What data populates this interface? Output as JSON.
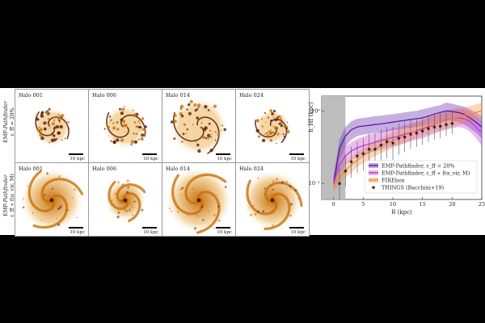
{
  "figure": {
    "rows": [
      {
        "label_line1": "EMP-",
        "label_italic": "Pathfinder",
        "label_line2": "ε_ff = 20%",
        "halos": [
          "Halo 001",
          "Halo 006",
          "Halo 014",
          "Halo 024"
        ]
      },
      {
        "label_line1": "EMP-",
        "label_italic": "Pathfinder",
        "label_line2": "ε_ff ∝ f(α_vir, M)",
        "halos": [
          "Halo 001",
          "Halo 006",
          "Halo 014",
          "Halo 024"
        ]
      }
    ],
    "scale_label": "10 kpc",
    "colors": {
      "gas_dark": "#5a1a00",
      "gas_mid": "#c8700a",
      "gas_light": "#f3d3a0"
    }
  },
  "chart_data": {
    "type": "line",
    "xlabel": "R (kpc)",
    "ylabel": "h_HI (kpc)",
    "xlim": [
      -2,
      25
    ],
    "ylim": [
      0.06,
      1.6
    ],
    "yscale": "log",
    "x_ticks": [
      0,
      5,
      10,
      15,
      20,
      25
    ],
    "y_ticks": [
      {
        "v": 0.1,
        "label": "10⁻¹"
      },
      {
        "v": 1.0,
        "label": "10⁰"
      }
    ],
    "shaded_region": [
      -2,
      2
    ],
    "legend_placement": "lower-right",
    "series": [
      {
        "name": "EMP-Pathfinder, ε_ff = 20%",
        "color": "#5b1aa6",
        "x": [
          0,
          1,
          2,
          3,
          4,
          5,
          6,
          7,
          8,
          9,
          10,
          11,
          12,
          13,
          14,
          15,
          16,
          17,
          18,
          19,
          20,
          21,
          22,
          23,
          24,
          25
        ],
        "y": [
          0.1,
          0.3,
          0.45,
          0.55,
          0.6,
          0.62,
          0.63,
          0.65,
          0.66,
          0.68,
          0.7,
          0.72,
          0.74,
          0.76,
          0.78,
          0.8,
          0.85,
          0.9,
          0.95,
          1.0,
          0.98,
          0.95,
          0.9,
          0.8,
          0.7,
          0.6
        ],
        "lo": [
          0.08,
          0.22,
          0.32,
          0.4,
          0.45,
          0.47,
          0.48,
          0.5,
          0.5,
          0.52,
          0.54,
          0.55,
          0.57,
          0.58,
          0.6,
          0.62,
          0.65,
          0.68,
          0.7,
          0.75,
          0.72,
          0.7,
          0.65,
          0.58,
          0.5,
          0.42
        ],
        "hi": [
          0.13,
          0.4,
          0.6,
          0.72,
          0.78,
          0.8,
          0.82,
          0.85,
          0.86,
          0.88,
          0.9,
          0.93,
          0.95,
          0.98,
          1.0,
          1.05,
          1.1,
          1.15,
          1.2,
          1.3,
          1.25,
          1.2,
          1.15,
          1.05,
          0.95,
          0.85
        ]
      },
      {
        "name": "EMP-Pathfinder, ε_ff ∝ f(α_vir, M)",
        "color": "#c23bd1",
        "x": [
          0,
          1,
          2,
          3,
          4,
          5,
          6,
          7,
          8,
          9,
          10,
          11,
          12,
          13,
          14,
          15,
          16,
          17,
          18,
          19,
          20,
          21,
          22,
          23,
          24,
          25
        ],
        "y": [
          0.1,
          0.18,
          0.24,
          0.28,
          0.31,
          0.33,
          0.35,
          0.37,
          0.39,
          0.41,
          0.43,
          0.45,
          0.48,
          0.5,
          0.53,
          0.56,
          0.6,
          0.65,
          0.7,
          0.75,
          0.78,
          0.8,
          0.78,
          0.72,
          0.6,
          0.5
        ],
        "lo": [
          0.08,
          0.14,
          0.18,
          0.21,
          0.23,
          0.25,
          0.26,
          0.28,
          0.29,
          0.31,
          0.32,
          0.34,
          0.36,
          0.38,
          0.4,
          0.42,
          0.45,
          0.48,
          0.52,
          0.55,
          0.58,
          0.6,
          0.58,
          0.52,
          0.42,
          0.33
        ],
        "hi": [
          0.13,
          0.24,
          0.32,
          0.37,
          0.41,
          0.44,
          0.47,
          0.49,
          0.52,
          0.55,
          0.58,
          0.6,
          0.63,
          0.66,
          0.7,
          0.74,
          0.8,
          0.86,
          0.93,
          1.0,
          1.05,
          1.08,
          1.05,
          0.98,
          0.85,
          0.72
        ]
      },
      {
        "name": "FIREbox",
        "color": "#f08a3c",
        "x": [
          0,
          1,
          2,
          3,
          4,
          5,
          6,
          7,
          8,
          9,
          10,
          11,
          12,
          13,
          14,
          15,
          16,
          17,
          18,
          19,
          20,
          21,
          22,
          23,
          24,
          25
        ],
        "y": [
          0.09,
          0.12,
          0.15,
          0.18,
          0.21,
          0.24,
          0.27,
          0.3,
          0.33,
          0.36,
          0.39,
          0.42,
          0.46,
          0.5,
          0.54,
          0.58,
          0.62,
          0.66,
          0.7,
          0.74,
          0.78,
          0.82,
          0.86,
          0.9,
          0.95,
          1.0
        ],
        "lo": [
          0.075,
          0.1,
          0.12,
          0.14,
          0.17,
          0.19,
          0.21,
          0.24,
          0.26,
          0.28,
          0.31,
          0.33,
          0.36,
          0.39,
          0.42,
          0.45,
          0.48,
          0.51,
          0.54,
          0.57,
          0.6,
          0.63,
          0.66,
          0.69,
          0.72,
          0.76
        ],
        "hi": [
          0.11,
          0.15,
          0.19,
          0.23,
          0.27,
          0.3,
          0.34,
          0.38,
          0.42,
          0.46,
          0.5,
          0.54,
          0.59,
          0.64,
          0.7,
          0.75,
          0.8,
          0.86,
          0.91,
          0.96,
          1.02,
          1.07,
          1.12,
          1.17,
          1.23,
          1.3
        ]
      },
      {
        "name": "THINGS (Bacchini+19)",
        "color": "#111111",
        "marker": "star",
        "x": [
          1,
          2,
          3,
          4,
          5,
          6,
          7,
          8,
          9,
          10,
          11,
          12,
          13,
          14,
          15,
          16,
          17,
          18,
          19,
          20
        ],
        "y": [
          0.1,
          0.15,
          0.2,
          0.24,
          0.26,
          0.3,
          0.3,
          0.34,
          0.38,
          0.36,
          0.42,
          0.44,
          0.48,
          0.5,
          0.53,
          0.57,
          0.6,
          0.62,
          0.65,
          0.68
        ],
        "err_lo": [
          0.06,
          0.09,
          0.12,
          0.14,
          0.15,
          0.18,
          0.17,
          0.2,
          0.22,
          0.21,
          0.25,
          0.27,
          0.3,
          0.32,
          0.34,
          0.37,
          0.4,
          0.42,
          0.45,
          0.48
        ],
        "err_hi": [
          0.16,
          0.24,
          0.32,
          0.38,
          0.42,
          0.48,
          0.5,
          0.55,
          0.6,
          0.6,
          0.68,
          0.7,
          0.75,
          0.78,
          0.82,
          0.86,
          0.9,
          0.92,
          0.95,
          0.98
        ]
      }
    ]
  }
}
